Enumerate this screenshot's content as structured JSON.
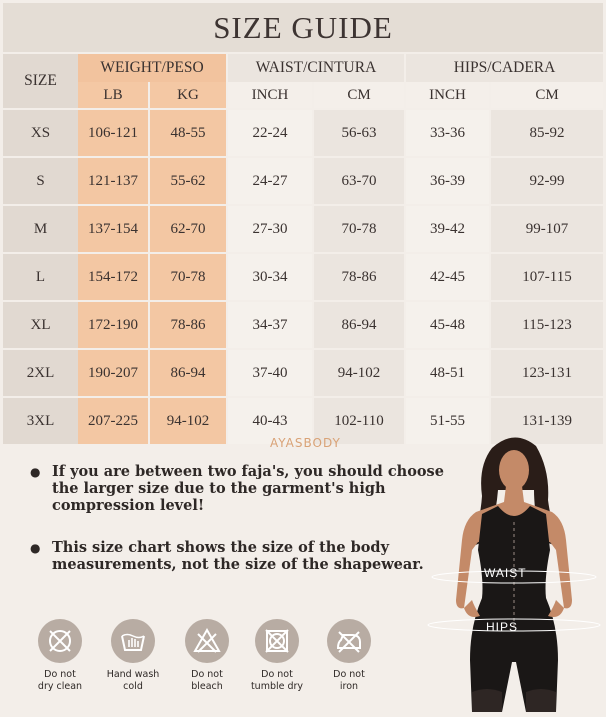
{
  "title": "SIZE GUIDE",
  "table": {
    "size_header": "SIZE",
    "groups": {
      "weight": "WEIGHT/PESO",
      "waist": "WAIST/CINTURA",
      "hips": "HIPS/CADERA"
    },
    "units": {
      "lb": "LB",
      "kg": "KG",
      "waist_inch": "INCH",
      "waist_cm": "CM",
      "hips_inch": "INCH",
      "hips_cm": "CM"
    },
    "rows": [
      {
        "size": "XS",
        "lb": "106-121",
        "kg": "48-55",
        "waist_inch": "22-24",
        "waist_cm": "56-63",
        "hips_inch": "33-36",
        "hips_cm": "85-92"
      },
      {
        "size": "S",
        "lb": "121-137",
        "kg": "55-62",
        "waist_inch": "24-27",
        "waist_cm": "63-70",
        "hips_inch": "36-39",
        "hips_cm": "92-99"
      },
      {
        "size": "M",
        "lb": "137-154",
        "kg": "62-70",
        "waist_inch": "27-30",
        "waist_cm": "70-78",
        "hips_inch": "39-42",
        "hips_cm": "99-107"
      },
      {
        "size": "L",
        "lb": "154-172",
        "kg": "70-78",
        "waist_inch": "30-34",
        "waist_cm": "78-86",
        "hips_inch": "42-45",
        "hips_cm": "107-115"
      },
      {
        "size": "XL",
        "lb": "172-190",
        "kg": "78-86",
        "waist_inch": "34-37",
        "waist_cm": "86-94",
        "hips_inch": "45-48",
        "hips_cm": "115-123"
      },
      {
        "size": "2XL",
        "lb": "190-207",
        "kg": "86-94",
        "waist_inch": "37-40",
        "waist_cm": "94-102",
        "hips_inch": "48-51",
        "hips_cm": "123-131"
      },
      {
        "size": "3XL",
        "lb": "207-225",
        "kg": "94-102",
        "waist_inch": "40-43",
        "waist_cm": "102-110",
        "hips_inch": "51-55",
        "hips_cm": "131-139"
      }
    ]
  },
  "brand": "AYASBODY",
  "notes": [
    "If you are between two faja's, you should choose the larger size due to the garment's high compression level!",
    "This size chart shows the size of the body measurements, not the size of the shapewear."
  ],
  "care": [
    {
      "icon": "no-dry-clean-icon",
      "line1": "Do not",
      "line2": "dry clean"
    },
    {
      "icon": "hand-wash-icon",
      "line1": "Hand wash",
      "line2": "cold"
    },
    {
      "icon": "no-bleach-icon",
      "line1": "Do not",
      "line2": "bleach"
    },
    {
      "icon": "no-tumble-dry-icon",
      "line1": "Do not",
      "line2": "tumble dry"
    },
    {
      "icon": "no-iron-icon",
      "line1": "Do not",
      "line2": "iron"
    }
  ],
  "model_labels": {
    "waist": "WAIST",
    "hips": "HIPS"
  },
  "colors": {
    "accent": "#f3c7a3",
    "header": "#e1d9d1",
    "icon": "#b8aca3",
    "brand": "#d9a276"
  }
}
